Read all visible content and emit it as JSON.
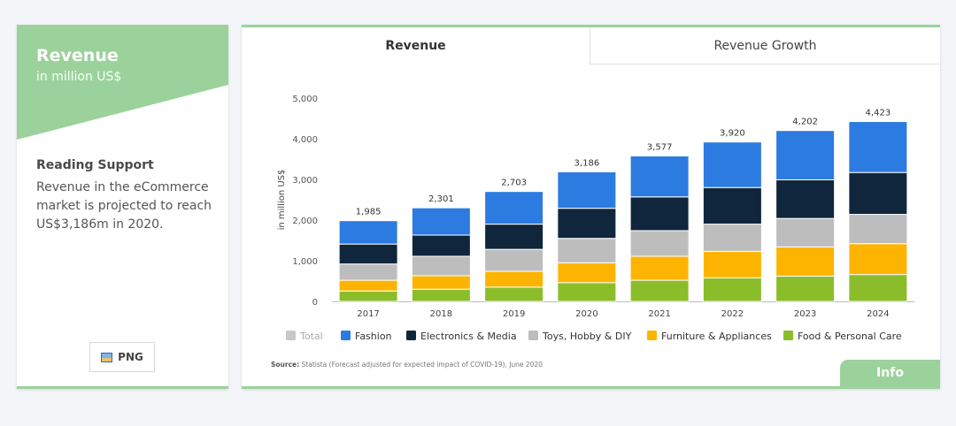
{
  "sidebar": {
    "title": "Revenue",
    "subtitle": "in million US$",
    "reading_title": "Reading Support",
    "reading_text": "Revenue in the eCommerce market is projected to reach US$3,186m in 2020.",
    "png_label": "PNG"
  },
  "tabs": {
    "revenue": "Revenue",
    "growth": "Revenue Growth"
  },
  "source_label": "Source:",
  "source_text": "Statista (Forecast adjusted for expected impact of COVID-19), June 2020",
  "info_label": "Info",
  "colors": {
    "accent": "#9bd29b",
    "Total": "#c8c8c8",
    "Fashion": "#2c7be0",
    "Electronics & Media": "#10263d",
    "Toys, Hobby & DIY": "#bdbdbd",
    "Furniture & Appliances": "#fdb400",
    "Food & Personal Care": "#8bbd2a"
  },
  "chart_data": {
    "type": "bar",
    "stacked": true,
    "categories": [
      "2017",
      "2018",
      "2019",
      "2020",
      "2021",
      "2022",
      "2023",
      "2024"
    ],
    "ylabel": "in million US$",
    "ylim": [
      0,
      5000
    ],
    "yticks": [
      "0",
      "1,000",
      "2,000",
      "3,000",
      "4,000",
      "5,000"
    ],
    "totals": [
      "1,985",
      "2,301",
      "2,703",
      "3,186",
      "3,577",
      "3,920",
      "4,202",
      "4,423"
    ],
    "series": [
      {
        "name": "Food & Personal Care",
        "values": [
          255,
          300,
          350,
          460,
          520,
          580,
          620,
          660
        ]
      },
      {
        "name": "Furniture & Appliances",
        "values": [
          265,
          330,
          390,
          490,
          590,
          650,
          720,
          760
        ]
      },
      {
        "name": "Toys, Hobby & DIY",
        "values": [
          400,
          480,
          540,
          600,
          630,
          670,
          700,
          720
        ]
      },
      {
        "name": "Electronics & Media",
        "values": [
          490,
          520,
          620,
          740,
          830,
          900,
          950,
          1030
        ]
      },
      {
        "name": "Fashion",
        "values": [
          575,
          671,
          803,
          896,
          1007,
          1120,
          1212,
          1253
        ]
      }
    ],
    "legend": [
      "Total",
      "Fashion",
      "Electronics & Media",
      "Toys, Hobby & DIY",
      "Furniture & Appliances",
      "Food & Personal Care"
    ],
    "legend_position": "bottom",
    "grid": false
  }
}
